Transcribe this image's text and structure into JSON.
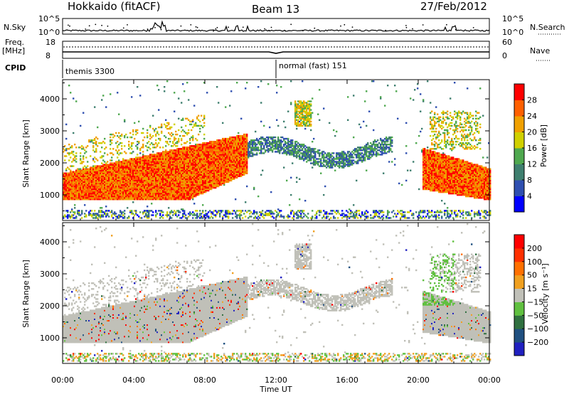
{
  "header": {
    "station": "Hokkaido (fitACF)",
    "beam": "Beam 13",
    "date": "27/Feb/2012"
  },
  "top_panels": {
    "nsky_label": "N.Sky",
    "nsearch_label": "N.Search",
    "nsky_ticks": [
      "10^5",
      "10^0"
    ],
    "nsearch_ticks": [
      "10^5",
      "10^0"
    ],
    "freq_label_line1": "Freq.",
    "freq_label_line2": "[MHz]",
    "freq_ticks": [
      "18",
      "8"
    ],
    "nave_label": "Nave",
    "nave_ticks": [
      "60",
      "0"
    ],
    "cpid_label": "CPID",
    "cpid_segments": [
      {
        "label": "themis 3300",
        "start_hour": 0
      },
      {
        "label": "normal (fast) 151",
        "start_hour": 12
      }
    ]
  },
  "chart_data": [
    {
      "type": "heatmap",
      "name": "power",
      "ylabel": "Slant Range [km]",
      "ylim": [
        200,
        4600
      ],
      "yticks": [
        1000,
        2000,
        3000,
        4000
      ],
      "xlim": [
        0,
        24
      ],
      "colorbar": {
        "label": "Power [dB]",
        "ticks": [
          "4",
          "8",
          "12",
          "16",
          "20",
          "24",
          "28"
        ],
        "colors": [
          "#0000ff",
          "#2f4fb0",
          "#3f7f6f",
          "#4fa84f",
          "#d0d000",
          "#f0a000",
          "#ff6000",
          "#ff0000"
        ]
      }
    },
    {
      "type": "heatmap",
      "name": "velocity",
      "ylabel": "Slant Range [km]",
      "ylim": [
        200,
        4600
      ],
      "yticks": [
        1000,
        2000,
        3000,
        4000
      ],
      "xlim": [
        0,
        24
      ],
      "colorbar": {
        "label": "Velocity [m s⁻¹]",
        "ticks": [
          "200",
          "100",
          "50",
          "15",
          "−15",
          "−50",
          "−100",
          "−200"
        ],
        "colors": [
          "#2020c0",
          "#205080",
          "#307040",
          "#60c040",
          "#c0c0b8",
          "#f0a020",
          "#ff7000",
          "#ff3000",
          "#ff0000"
        ]
      }
    }
  ],
  "xaxis": {
    "ticks": [
      "00:00",
      "04:00",
      "08:00",
      "12:00",
      "16:00",
      "20:00",
      "00:00"
    ],
    "label": "Time UT"
  }
}
